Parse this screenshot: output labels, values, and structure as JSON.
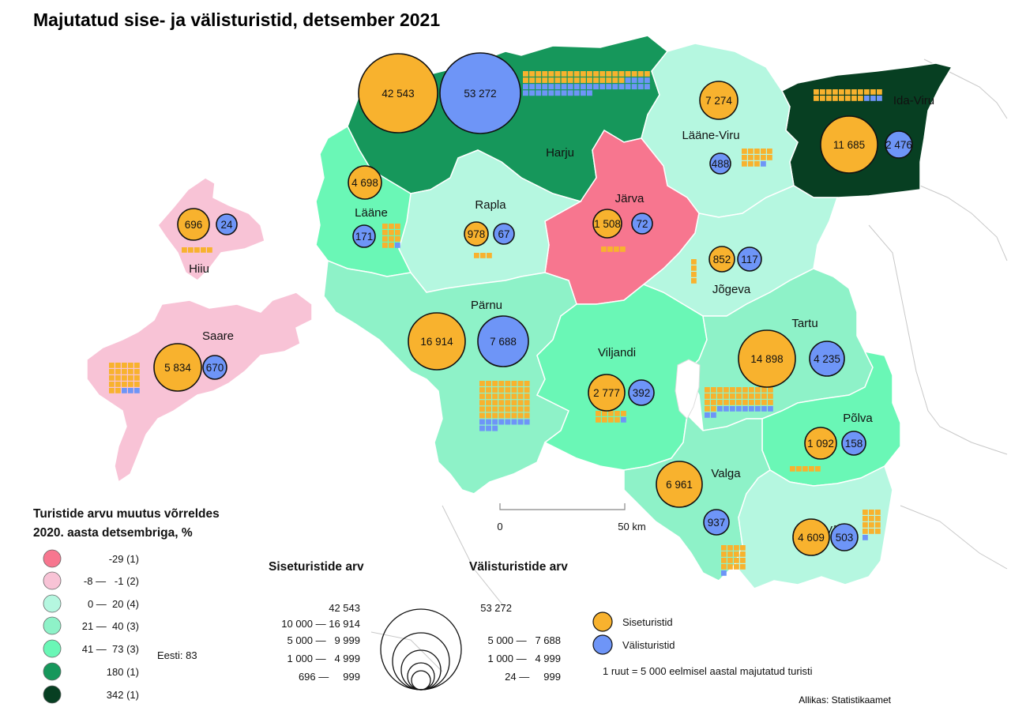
{
  "title": "Majutatud sise- ja välisturistid, detsember 2021",
  "source": "Allikas: Statistikaamet",
  "colors": {
    "c_neg29": "#f7768f",
    "c_neg8_1": "#f8c3d6",
    "c_0_20": "#b5f7e0",
    "c_21_40": "#8ef2c8",
    "c_41_73": "#6af7b6",
    "c_180": "#16975b",
    "c_342": "#073f22",
    "domestic": "#f8b22e",
    "foreign": "#6e95f7"
  },
  "counties": [
    {
      "name": "Harju",
      "domestic": "42 543",
      "foreign": "53 272",
      "change_class": "180"
    },
    {
      "name": "Ida-Viru",
      "domestic": "11 685",
      "foreign": "2 476",
      "change_class": "342"
    },
    {
      "name": "Lääne-Viru",
      "domestic": "7 274",
      "foreign": "488",
      "change_class": "0-20"
    },
    {
      "name": "Järva",
      "domestic": "1 508",
      "foreign": "72",
      "change_class": "-29"
    },
    {
      "name": "Rapla",
      "domestic": "978",
      "foreign": "67",
      "change_class": "0-20"
    },
    {
      "name": "Lääne",
      "domestic": "4 698",
      "foreign": "171",
      "change_class": "41-73"
    },
    {
      "name": "Hiiu",
      "domestic": "696",
      "foreign": "24",
      "change_class": "-8 - -1"
    },
    {
      "name": "Saare",
      "domestic": "5 834",
      "foreign": "670",
      "change_class": "-8 - -1"
    },
    {
      "name": "Jõgeva",
      "domestic": "852",
      "foreign": "117",
      "change_class": "0-20"
    },
    {
      "name": "Pärnu",
      "domestic": "16 914",
      "foreign": "7 688",
      "change_class": "21-40"
    },
    {
      "name": "Viljandi",
      "domestic": "2 777",
      "foreign": "392",
      "change_class": "41-73"
    },
    {
      "name": "Tartu",
      "domestic": "14 898",
      "foreign": "4 235",
      "change_class": "21-40"
    },
    {
      "name": "Põlva",
      "domestic": "1 092",
      "foreign": "158",
      "change_class": "41-73"
    },
    {
      "name": "Valga",
      "domestic": "6 961",
      "foreign": "937",
      "change_class": "21-40"
    },
    {
      "name": "Võru",
      "domestic": "4 609",
      "foreign": "503",
      "change_class": "0-20"
    }
  ],
  "legend_change": {
    "title_line1": "Turistide arvu muutus võrreldes",
    "title_line2": "2020. aasta detsembriga, %",
    "items": [
      {
        "label": "-29 (1)"
      },
      {
        "label": "-8 —   -1 (2)"
      },
      {
        "label": "0 —  20 (4)"
      },
      {
        "label": "21 —  40 (3)"
      },
      {
        "label": "41 —  73 (3)"
      },
      {
        "label": "180 (1)"
      },
      {
        "label": "342 (1)"
      }
    ],
    "estonia_total": "Eesti: 83"
  },
  "legend_size": {
    "domestic_title": "Siseturistide arv",
    "foreign_title": "Välisturistide arv",
    "domestic_rows": [
      "42 543",
      "10 000 — 16 914",
      "5 000 —   9 999",
      "1 000 —   4 999",
      "696 —     999"
    ],
    "foreign_rows": [
      "53 272",
      "",
      "5 000 —   7 688",
      "1 000 —   4 999",
      "24 —     999"
    ]
  },
  "legend_type": {
    "domestic": "Siseturistid",
    "foreign": "Välisturistid",
    "square_note": "1 ruut = 5 000 eelmisel aastal majutatud turisti"
  },
  "scale": {
    "start": "0",
    "end": "50 km"
  }
}
